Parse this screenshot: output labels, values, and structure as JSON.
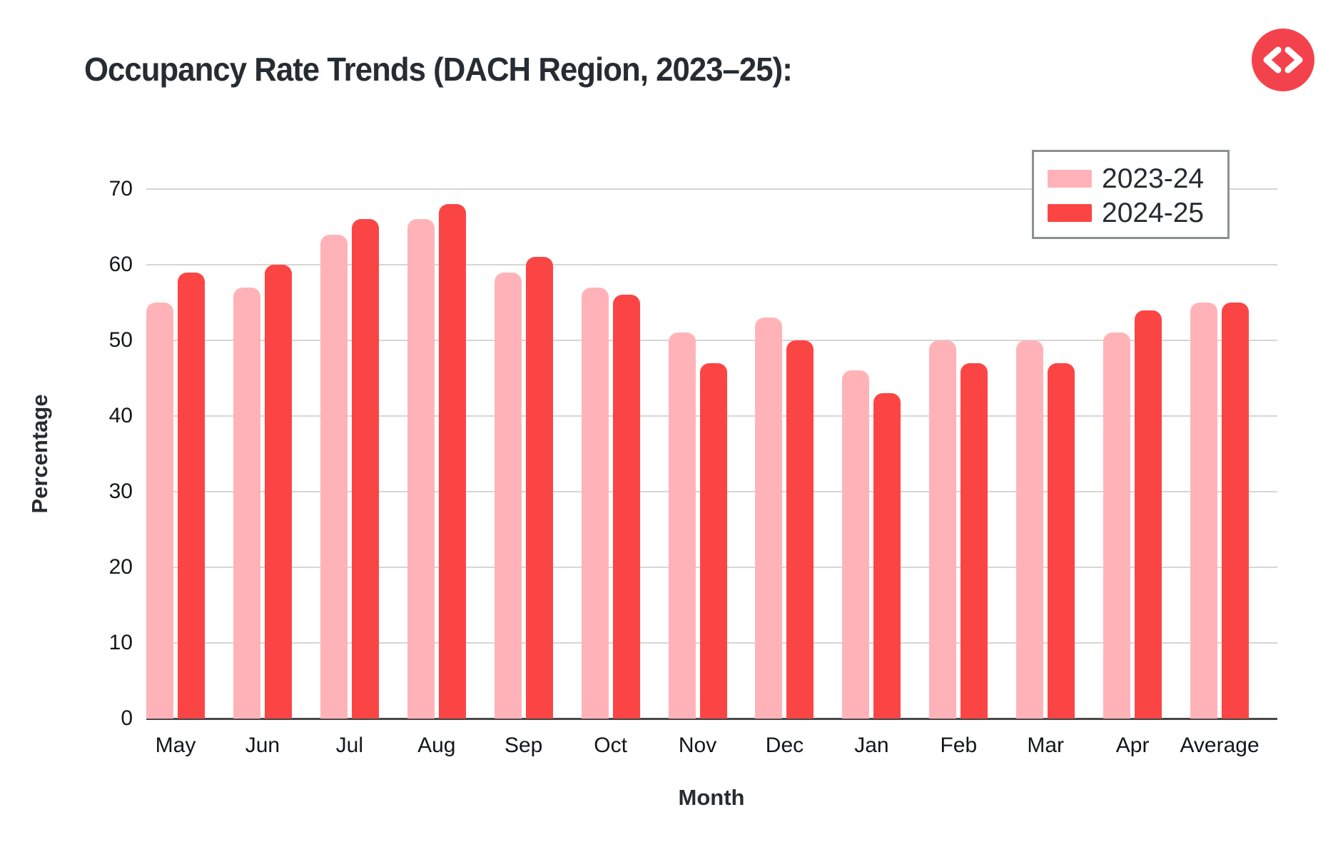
{
  "header": {
    "title": "Occupancy Rate Trends (DACH Region, 2023–25):"
  },
  "logo": {
    "name": "code-brackets-icon",
    "background": "#f4424c",
    "glyph_color": "#ffffff"
  },
  "axes": {
    "y_title": "Percentage",
    "x_title": "Month",
    "y_ticks": [
      0,
      10,
      20,
      30,
      40,
      50,
      60,
      70
    ]
  },
  "legend": {
    "items": [
      {
        "label": "2023-24",
        "color": "#ffb3b8"
      },
      {
        "label": "2024-25",
        "color": "#fb4545"
      }
    ]
  },
  "colors": {
    "title_text": "#262c31",
    "axis_text": "#141619",
    "gridline": "#d6d6d6",
    "axis_line": "#474747",
    "legend_border": "#8d9093",
    "background": "#ffffff"
  },
  "chart_data": {
    "type": "bar",
    "title": "Occupancy Rate Trends (DACH Region, 2023–25):",
    "xlabel": "Month",
    "ylabel": "Percentage",
    "ylim": [
      0,
      70
    ],
    "grid": true,
    "legend_position": "top-right",
    "categories": [
      "May",
      "Jun",
      "Jul",
      "Aug",
      "Sep",
      "Oct",
      "Nov",
      "Dec",
      "Jan",
      "Feb",
      "Mar",
      "Apr",
      "Average"
    ],
    "series": [
      {
        "name": "2023-24",
        "color": "#ffb3b8",
        "values": [
          55,
          57,
          64,
          66,
          59,
          57,
          51,
          53,
          46,
          50,
          50,
          51,
          55
        ]
      },
      {
        "name": "2024-25",
        "color": "#fb4545",
        "values": [
          59,
          60,
          66,
          68,
          61,
          56,
          47,
          50,
          43,
          47,
          47,
          54,
          55
        ]
      }
    ]
  }
}
